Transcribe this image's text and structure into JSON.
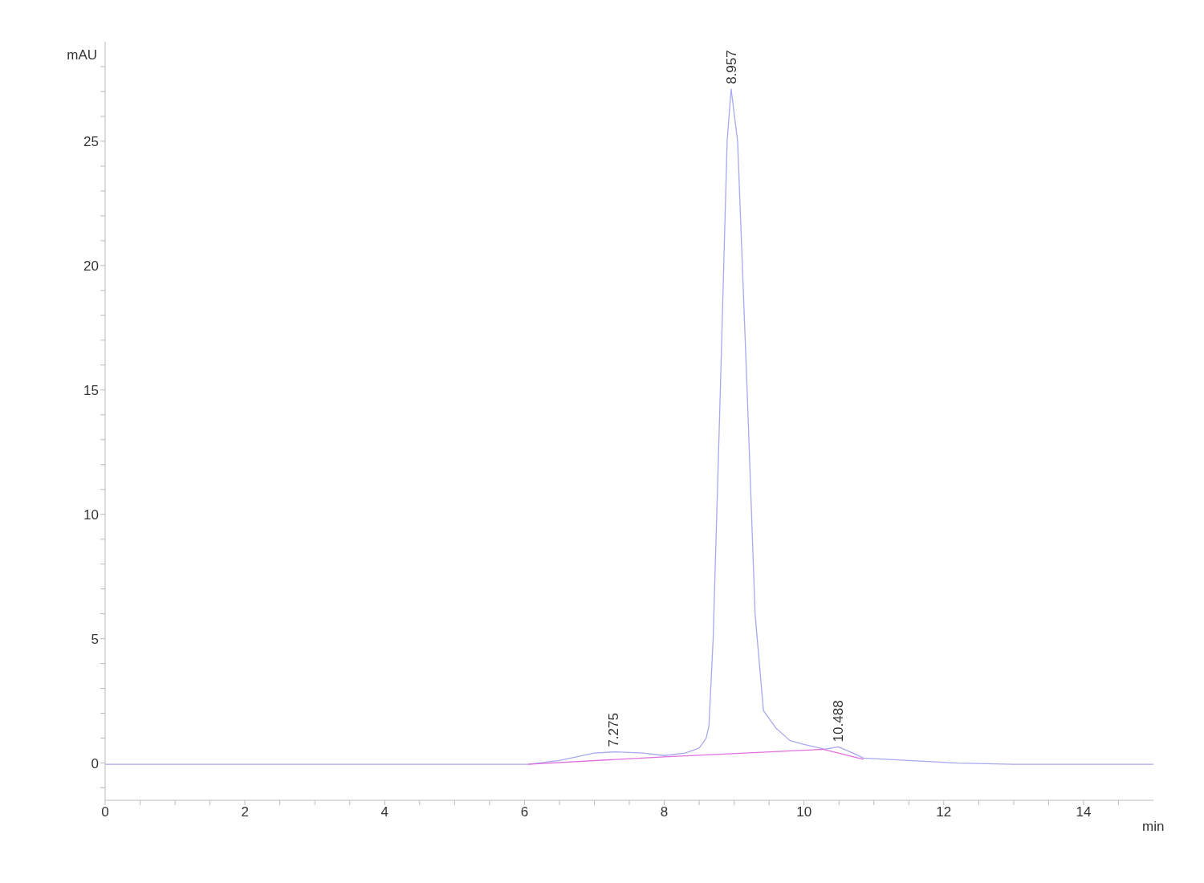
{
  "chart_data": {
    "type": "line",
    "xlabel": "min",
    "ylabel": "mAU",
    "xlim": [
      0,
      15
    ],
    "ylim": [
      -1.5,
      29
    ],
    "xticks": [
      0,
      {
        "value": 0.5,
        "label": null
      },
      2,
      {
        "value": 1,
        "label": null
      },
      {
        "value": 1.5,
        "label": null
      },
      {
        "value": 2.5,
        "label": null
      },
      {
        "value": 3,
        "label": null
      },
      {
        "value": 3.5,
        "label": null
      },
      4,
      {
        "value": 4.5,
        "label": null
      },
      {
        "value": 5,
        "label": null
      },
      {
        "value": 5.5,
        "label": null
      },
      6,
      {
        "value": 6.5,
        "label": null
      },
      {
        "value": 7,
        "label": null
      },
      {
        "value": 7.5,
        "label": null
      },
      8,
      {
        "value": 8.5,
        "label": null
      },
      {
        "value": 9,
        "label": null
      },
      {
        "value": 9.5,
        "label": null
      },
      10,
      {
        "value": 10.5,
        "label": null
      },
      {
        "value": 11,
        "label": null
      },
      {
        "value": 11.5,
        "label": null
      },
      12,
      {
        "value": 12.5,
        "label": null
      },
      {
        "value": 13,
        "label": null
      },
      {
        "value": 13.5,
        "label": null
      },
      14,
      {
        "value": 14.5,
        "label": null
      }
    ],
    "yticks": [
      {
        "value": -1,
        "label": null
      },
      0,
      {
        "value": 1,
        "label": null
      },
      {
        "value": 2,
        "label": null
      },
      {
        "value": 3,
        "label": null
      },
      {
        "value": 4,
        "label": null
      },
      5,
      {
        "value": 6,
        "label": null
      },
      {
        "value": 7,
        "label": null
      },
      {
        "value": 8,
        "label": null
      },
      {
        "value": 9,
        "label": null
      },
      10,
      {
        "value": 11,
        "label": null
      },
      {
        "value": 12,
        "label": null
      },
      {
        "value": 13,
        "label": null
      },
      {
        "value": 14,
        "label": null
      },
      15,
      {
        "value": 16,
        "label": null
      },
      {
        "value": 17,
        "label": null
      },
      {
        "value": 18,
        "label": null
      },
      {
        "value": 19,
        "label": null
      },
      20,
      {
        "value": 21,
        "label": null
      },
      {
        "value": 22,
        "label": null
      },
      {
        "value": 23,
        "label": null
      },
      {
        "value": 24,
        "label": null
      },
      25,
      {
        "value": 26,
        "label": null
      },
      {
        "value": 27,
        "label": null
      },
      {
        "value": 28,
        "label": null
      }
    ],
    "grid": false,
    "legend": false,
    "marker": "none",
    "line_style": "solid",
    "series": [
      {
        "color": "#a8a8f0",
        "x": [
          0,
          2,
          4,
          6.05,
          6.5,
          7.0,
          7.3,
          7.7,
          8.0,
          8.3,
          8.5,
          8.6,
          8.64,
          8.7,
          8.8,
          8.9,
          8.957,
          9.05,
          9.19,
          9.3,
          9.42,
          9.6,
          9.8,
          10.0,
          10.3,
          10.488,
          10.7,
          10.85,
          11.5,
          12.2,
          13,
          14,
          15
        ],
        "values": [
          -0.05,
          -0.05,
          -0.05,
          -0.05,
          0.1,
          0.4,
          0.45,
          0.4,
          0.3,
          0.4,
          0.6,
          1.0,
          1.5,
          5,
          14.7,
          25,
          27.1,
          25,
          14.7,
          6,
          2.1,
          1.4,
          0.9,
          0.75,
          0.55,
          0.65,
          0.4,
          0.2,
          0.1,
          0,
          -0.05,
          -0.05,
          -0.05
        ]
      },
      {
        "color": "#e070e0",
        "x": [
          6.05,
          8.0,
          10.27,
          10.85
        ],
        "values": [
          -0.05,
          0.25,
          0.55,
          0.15
        ]
      }
    ],
    "annotations": [
      {
        "text": "7.275",
        "x": 7.275,
        "y": 0.45
      },
      {
        "text": "8.957",
        "x": 8.957,
        "y": 27.1
      },
      {
        "text": "10.488",
        "x": 10.488,
        "y": 0.65
      }
    ]
  }
}
